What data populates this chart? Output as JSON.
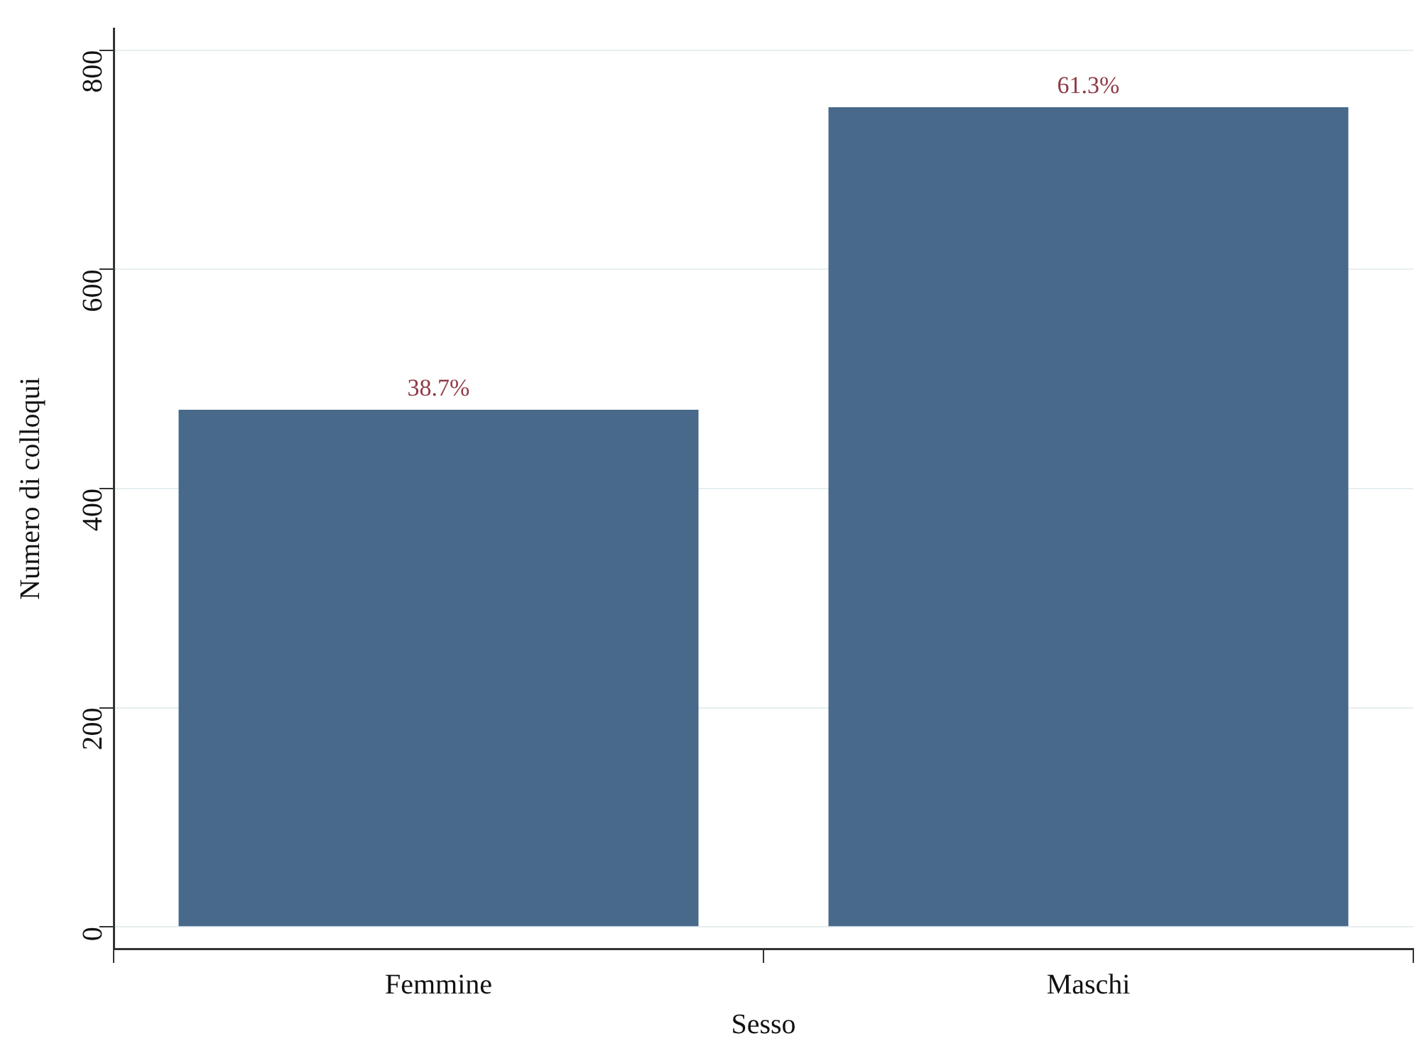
{
  "chart_data": {
    "type": "bar",
    "xlabel": "Sesso",
    "ylabel": "Numero di colloqui",
    "categories": [
      "Femmine",
      "Maschi"
    ],
    "values": [
      472,
      748
    ],
    "color": "#48698a",
    "annotations": [
      {
        "text": "38.7%",
        "x": "Femmine",
        "y": 472
      },
      {
        "text": "61.3%",
        "x": "Maschi",
        "y": 748
      }
    ],
    "ylim": [
      -20,
      820
    ],
    "yticks": [
      0,
      200,
      400,
      600,
      800
    ],
    "grid": "y"
  }
}
